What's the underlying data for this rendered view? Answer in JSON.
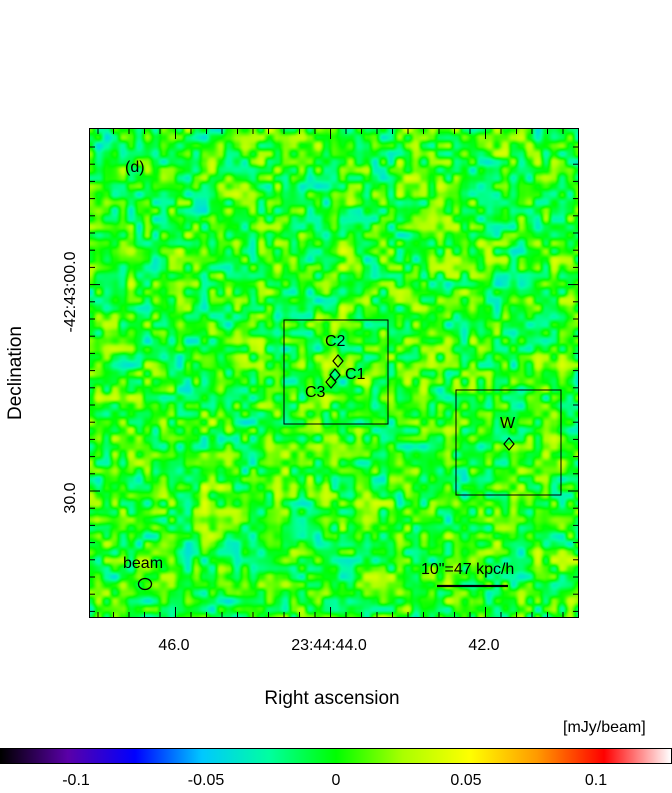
{
  "panel_label": "(d)",
  "axes": {
    "x_title": "Right ascension",
    "y_title": "Declination",
    "x_ticks": [
      "46.0",
      "23:44:44.0",
      "42.0"
    ],
    "y_ticks": [
      "-42:43:00.0",
      "30.0"
    ]
  },
  "annotations": {
    "region_central": {
      "sources": [
        "C1",
        "C2",
        "C3"
      ]
    },
    "region_west": {
      "source": "W"
    },
    "beam_label": "beam",
    "scale_bar_label": "10\"=47 kpc/h"
  },
  "colorbar": {
    "unit_label": "[mJy/beam]",
    "ticks": [
      "-0.1",
      "-0.05",
      "0",
      "0.05",
      "0.1"
    ],
    "tick_values": [
      -0.1,
      -0.05,
      0,
      0.05,
      0.1
    ],
    "range": [
      -0.13,
      0.13
    ],
    "colors": [
      "#000000",
      "#5a00a8",
      "#0000ff",
      "#00c8ff",
      "#00ffa0",
      "#00ff00",
      "#aaff00",
      "#ffff00",
      "#ff9a00",
      "#ff0000",
      "#ffffff"
    ]
  },
  "marker_color": "#000000"
}
